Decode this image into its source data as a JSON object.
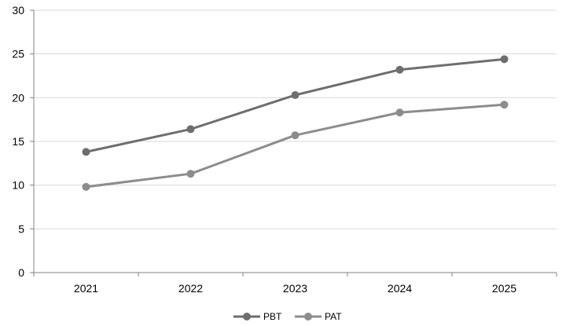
{
  "chart_data": {
    "type": "line",
    "categories": [
      "2021",
      "2022",
      "2023",
      "2024",
      "2025"
    ],
    "series": [
      {
        "name": "PBT",
        "values": [
          13.8,
          16.4,
          20.3,
          23.2,
          24.4
        ],
        "color": "#6e6e6e"
      },
      {
        "name": "PAT",
        "values": [
          9.8,
          11.3,
          15.7,
          18.3,
          19.2
        ],
        "color": "#8c8c8c"
      }
    ],
    "ylim": [
      0,
      30
    ],
    "yticks": [
      0,
      5,
      10,
      15,
      20,
      25,
      30
    ],
    "grid": true,
    "grid_color": "#d9d9d9",
    "axis_color": "#808080",
    "legend_position": "bottom"
  }
}
